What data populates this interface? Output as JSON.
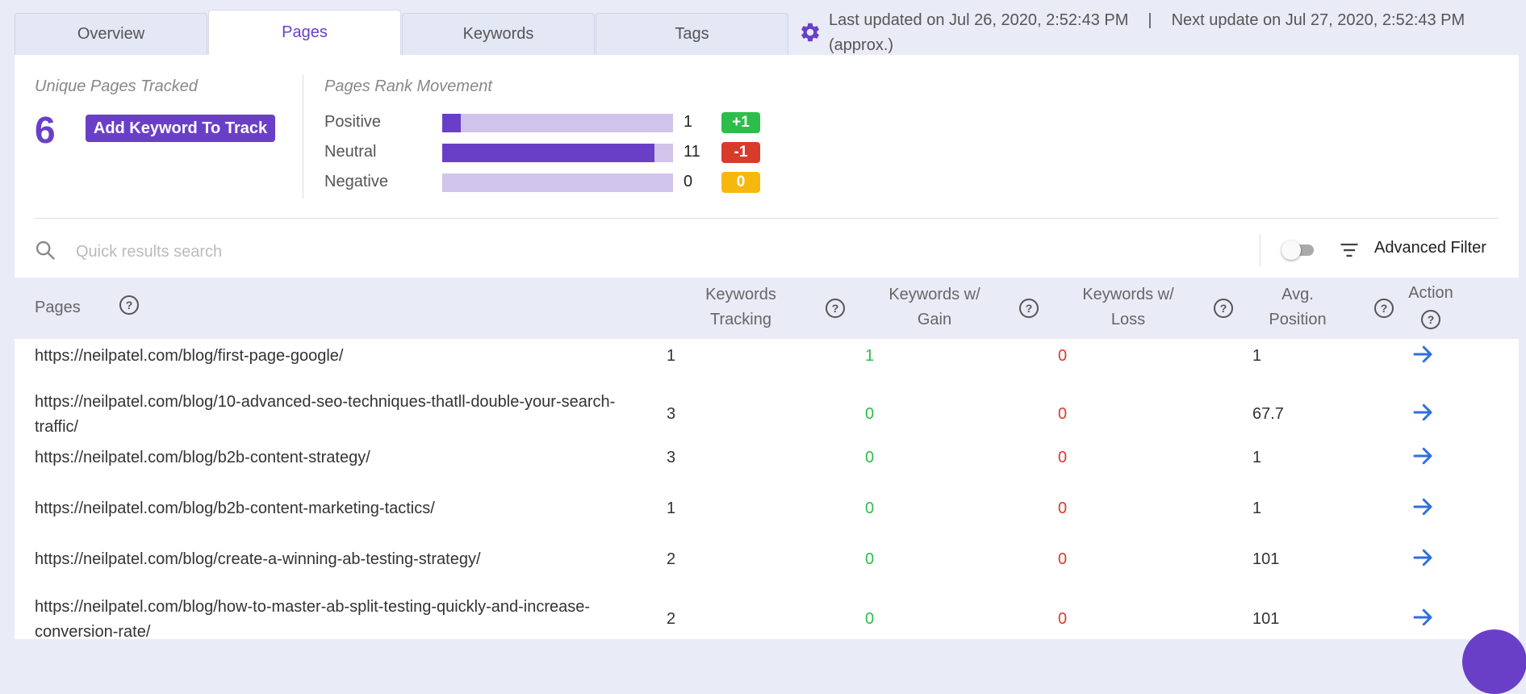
{
  "tabs": [
    "Overview",
    "Pages",
    "Keywords",
    "Tags"
  ],
  "update": {
    "last": "Last updated on Jul 26, 2020, 2:52:43 PM",
    "separator": "|",
    "next": "Next update on Jul 27, 2020, 2:52:43 PM",
    "approx": "(approx.)"
  },
  "summary": {
    "unique_label": "Unique Pages Tracked",
    "unique_count": "6",
    "add_button": "Add Keyword To Track",
    "movement_label": "Pages Rank Movement",
    "rows": [
      {
        "label": "Positive",
        "count": "1",
        "badge": "+1",
        "fraction": 0.08,
        "badge_color": "#2dbd4a"
      },
      {
        "label": "Neutral",
        "count": "11",
        "badge": "-1",
        "fraction": 0.92,
        "badge_color": "#d93b2b"
      },
      {
        "label": "Negative",
        "count": "0",
        "badge": "0",
        "fraction": 0.0,
        "badge_color": "#f6b80c"
      }
    ]
  },
  "search": {
    "placeholder": "Quick results search",
    "advanced_filter": "Advanced Filter"
  },
  "table": {
    "headers": {
      "pages": "Pages",
      "kw_tracking_1": "Keywords",
      "kw_tracking_2": "Tracking",
      "kw_gain_1": "Keywords w/",
      "kw_gain_2": "Gain",
      "kw_loss_1": "Keywords w/",
      "kw_loss_2": "Loss",
      "avg_1": "Avg.",
      "avg_2": "Position",
      "action": "Action",
      "help": "?"
    },
    "rows": [
      {
        "url": "https://neilpatel.com/blog/first-page-google/",
        "tracking": "1",
        "gain": "1",
        "loss": "0",
        "avg": "1"
      },
      {
        "url": "https://neilpatel.com/blog/10-advanced-seo-techniques-thatll-double-your-search-traffic/",
        "tracking": "3",
        "gain": "0",
        "loss": "0",
        "avg": "67.7"
      },
      {
        "url": "https://neilpatel.com/blog/b2b-content-strategy/",
        "tracking": "3",
        "gain": "0",
        "loss": "0",
        "avg": "1"
      },
      {
        "url": "https://neilpatel.com/blog/b2b-content-marketing-tactics/",
        "tracking": "1",
        "gain": "0",
        "loss": "0",
        "avg": "1"
      },
      {
        "url": "https://neilpatel.com/blog/create-a-winning-ab-testing-strategy/",
        "tracking": "2",
        "gain": "0",
        "loss": "0",
        "avg": "101"
      },
      {
        "url": "https://neilpatel.com/blog/how-to-master-ab-split-testing-quickly-and-increase-conversion-rate/",
        "tracking": "2",
        "gain": "0",
        "loss": "0",
        "avg": "101"
      }
    ]
  },
  "icons": {
    "settings": "gear-icon",
    "search": "search-icon",
    "filter": "filter-icon",
    "action": "arrow-right-icon",
    "help": "help-icon"
  },
  "colors": {
    "accent": "#6a3fc8",
    "gain": "#2dbd4a",
    "loss": "#e0382a",
    "action": "#2f6fe0"
  }
}
